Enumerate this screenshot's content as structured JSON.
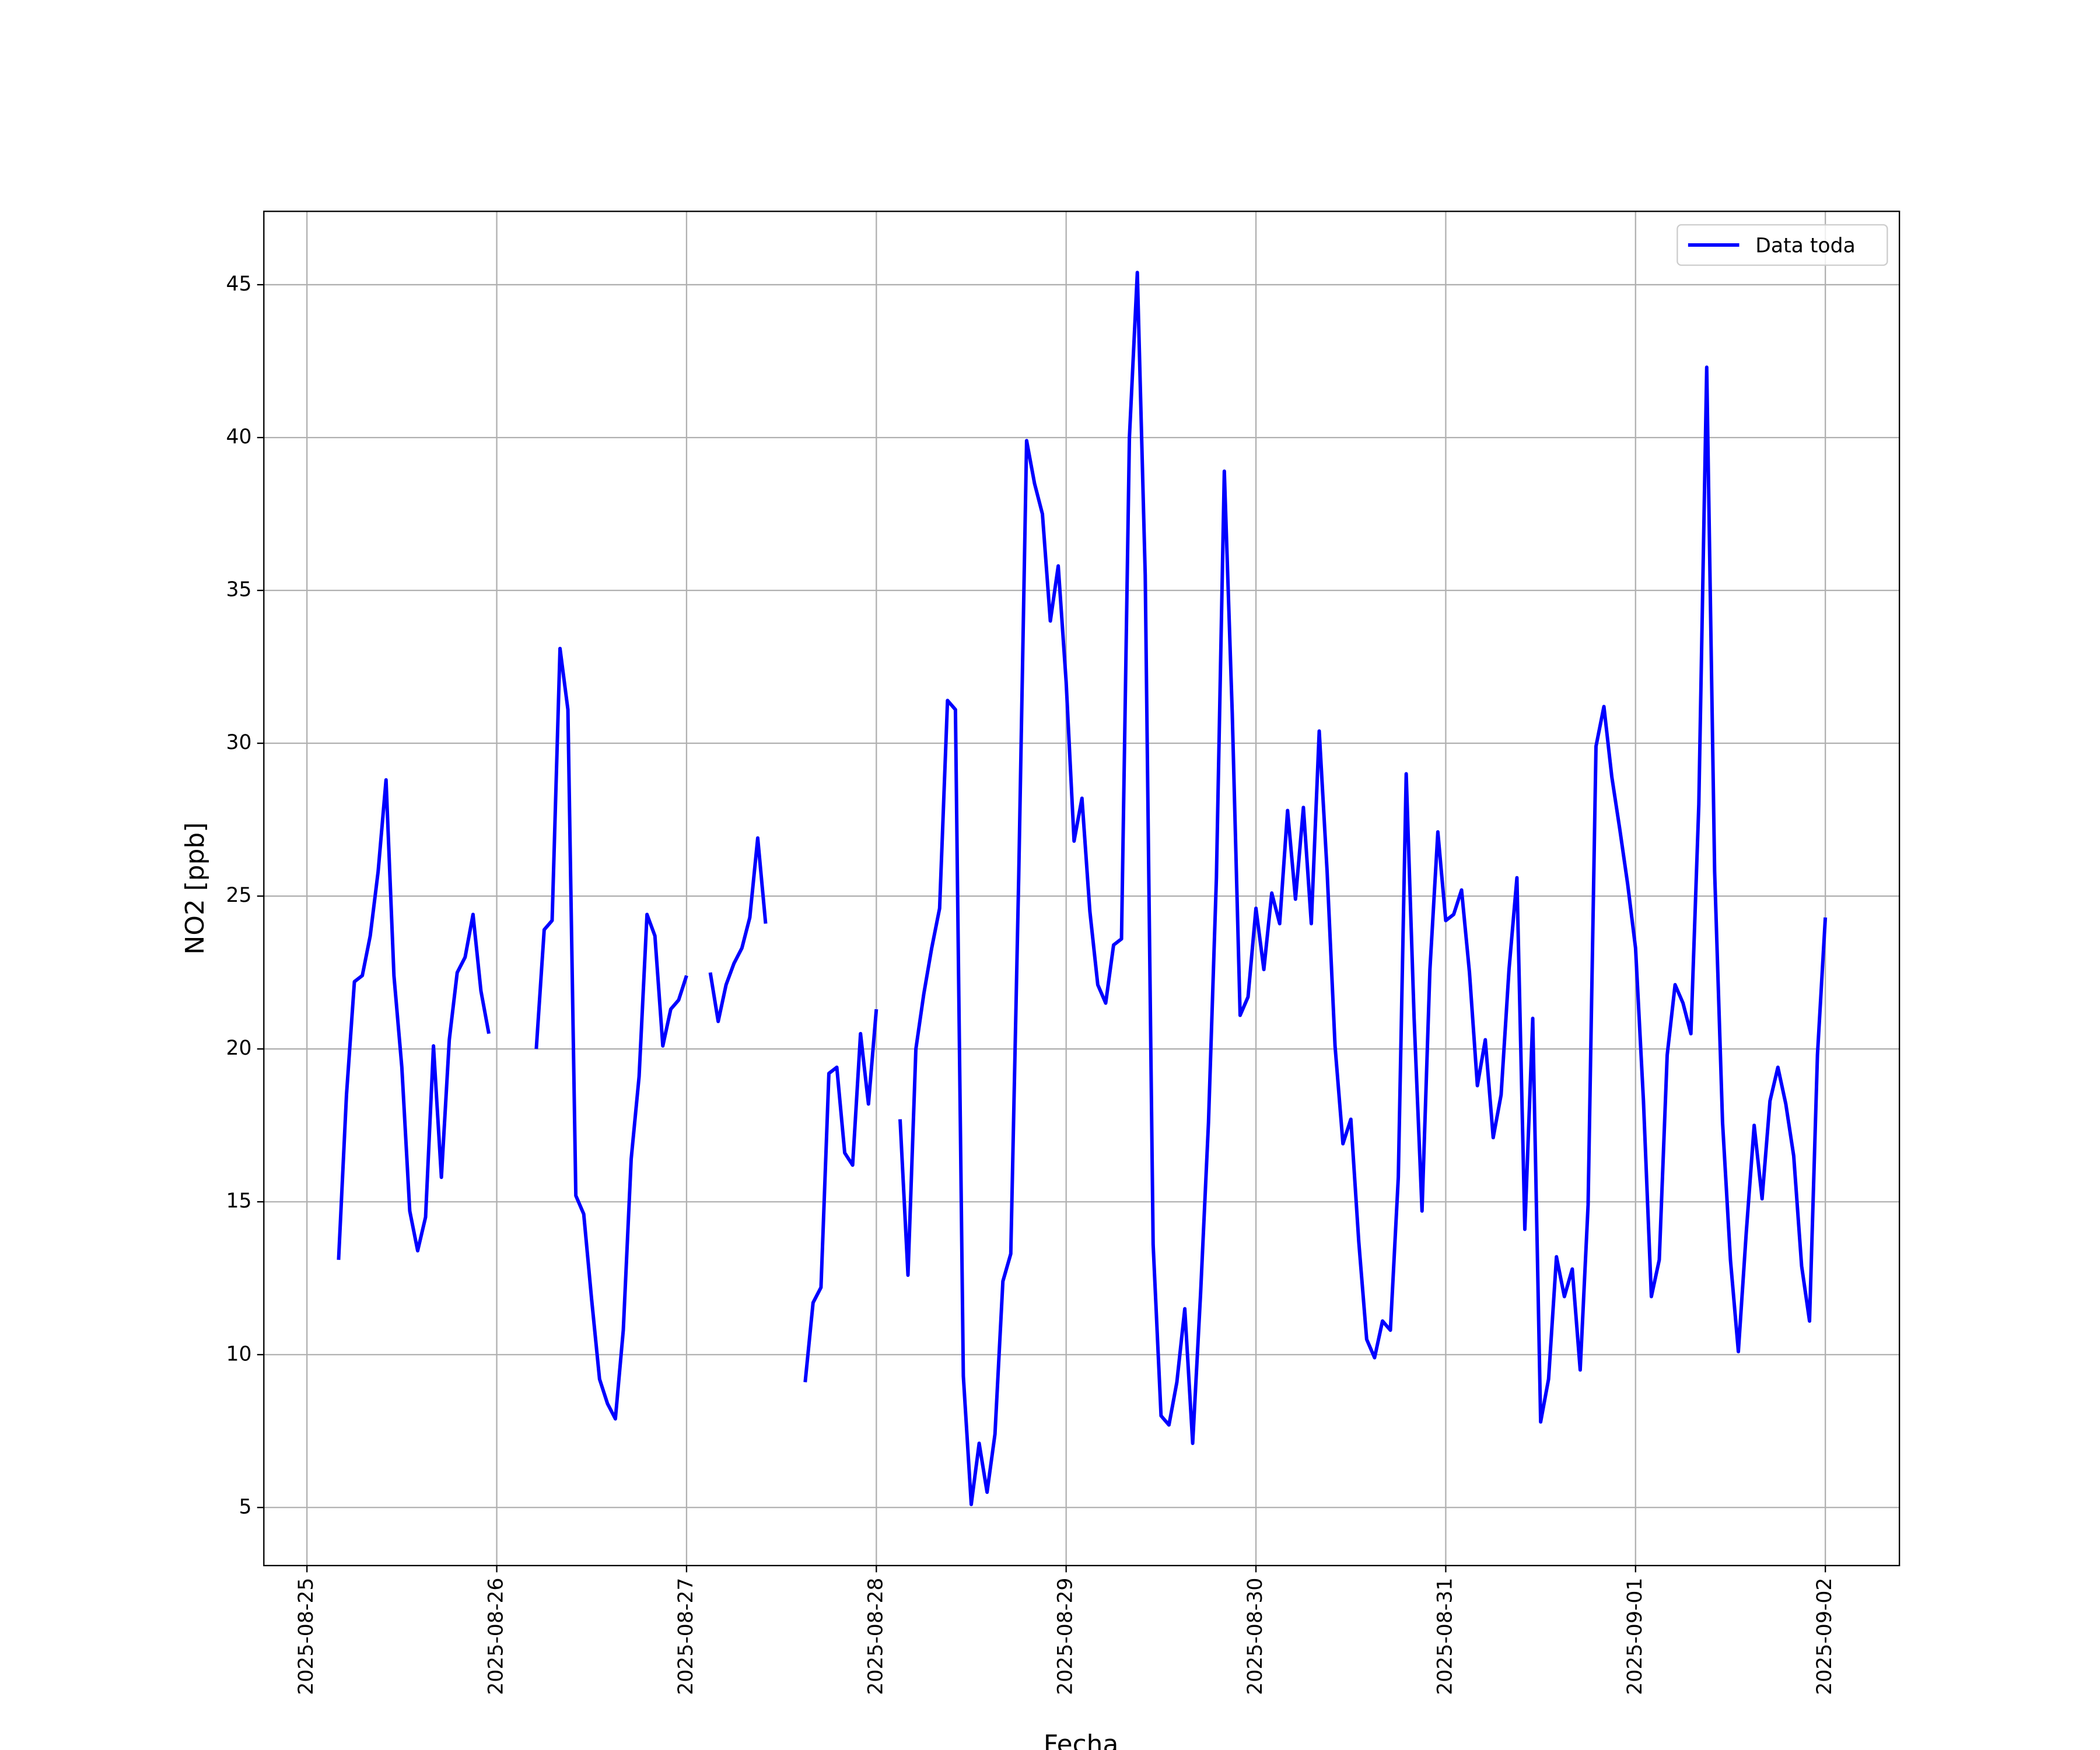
{
  "chart_data": {
    "type": "line",
    "xlabel": "Fecha",
    "ylabel": "NO2 [ppb]",
    "xlim": [
      "2025-08-24 18:33",
      "2025-09-02 09:22"
    ],
    "xticks": [
      "2025-08-25",
      "2025-08-26",
      "2025-08-27",
      "2025-08-28",
      "2025-08-29",
      "2025-08-30",
      "2025-08-31",
      "2025-09-01",
      "2025-09-02"
    ],
    "ylim": [
      3.1,
      47.4
    ],
    "yticks": [
      5,
      10,
      15,
      20,
      25,
      30,
      35,
      40,
      45
    ],
    "grid": true,
    "legend": "upper right",
    "x": [
      "2025-08-25 04:00",
      "2025-08-25 05:00",
      "2025-08-25 06:00",
      "2025-08-25 07:00",
      "2025-08-25 08:00",
      "2025-08-25 09:00",
      "2025-08-25 10:00",
      "2025-08-25 11:00",
      "2025-08-25 12:00",
      "2025-08-25 13:00",
      "2025-08-25 14:00",
      "2025-08-25 15:00",
      "2025-08-25 16:00",
      "2025-08-25 17:00",
      "2025-08-25 18:00",
      "2025-08-25 19:00",
      "2025-08-25 20:00",
      "2025-08-25 21:00",
      "2025-08-25 22:00",
      "2025-08-25 23:00",
      "2025-08-26 00:00",
      "2025-08-26 05:00",
      "2025-08-26 06:00",
      "2025-08-26 07:00",
      "2025-08-26 08:00",
      "2025-08-26 09:00",
      "2025-08-26 10:00",
      "2025-08-26 11:00",
      "2025-08-26 12:00",
      "2025-08-26 13:00",
      "2025-08-26 14:00",
      "2025-08-26 15:00",
      "2025-08-26 16:00",
      "2025-08-26 17:00",
      "2025-08-26 18:00",
      "2025-08-26 19:00",
      "2025-08-26 20:00",
      "2025-08-26 21:00",
      "2025-08-26 22:00",
      "2025-08-26 23:00",
      "2025-08-27 00:00",
      "2025-08-27 01:00",
      "2025-08-27 03:00",
      "2025-08-27 04:00",
      "2025-08-27 05:00",
      "2025-08-27 06:00",
      "2025-08-27 07:00",
      "2025-08-27 08:00",
      "2025-08-27 09:00",
      "2025-08-27 10:00",
      "2025-08-27 12:00",
      "2025-08-27 15:00",
      "2025-08-27 16:00",
      "2025-08-27 17:00",
      "2025-08-27 18:00",
      "2025-08-27 19:00",
      "2025-08-27 20:00",
      "2025-08-27 21:00",
      "2025-08-27 22:00",
      "2025-08-27 23:00",
      "2025-08-28 00:00",
      "2025-08-28 01:00",
      "2025-08-28 03:00",
      "2025-08-28 04:00",
      "2025-08-28 05:00",
      "2025-08-28 06:00",
      "2025-08-28 07:00",
      "2025-08-28 08:00",
      "2025-08-28 09:00",
      "2025-08-28 10:00",
      "2025-08-28 11:00",
      "2025-08-28 12:00",
      "2025-08-28 13:00",
      "2025-08-28 14:00",
      "2025-08-28 15:00",
      "2025-08-28 16:00",
      "2025-08-28 17:00",
      "2025-08-28 18:00",
      "2025-08-28 19:00",
      "2025-08-28 20:00",
      "2025-08-28 21:00",
      "2025-08-28 22:00",
      "2025-08-28 23:00",
      "2025-08-29 00:00",
      "2025-08-29 01:00",
      "2025-08-29 02:00",
      "2025-08-29 03:00",
      "2025-08-29 04:00",
      "2025-08-29 05:00",
      "2025-08-29 06:00",
      "2025-08-29 07:00",
      "2025-08-29 08:00",
      "2025-08-29 09:00",
      "2025-08-29 10:00",
      "2025-08-29 11:00",
      "2025-08-29 12:00",
      "2025-08-29 13:00",
      "2025-08-29 14:00",
      "2025-08-29 15:00",
      "2025-08-29 16:00",
      "2025-08-29 17:00",
      "2025-08-29 18:00",
      "2025-08-29 19:00",
      "2025-08-29 20:00",
      "2025-08-29 21:00",
      "2025-08-29 22:00",
      "2025-08-29 23:00",
      "2025-08-30 00:00",
      "2025-08-30 01:00",
      "2025-08-30 02:00",
      "2025-08-30 03:00",
      "2025-08-30 04:00",
      "2025-08-30 05:00",
      "2025-08-30 06:00",
      "2025-08-30 07:00",
      "2025-08-30 08:00",
      "2025-08-30 09:00",
      "2025-08-30 10:00",
      "2025-08-30 11:00",
      "2025-08-30 12:00",
      "2025-08-30 13:00",
      "2025-08-30 14:00",
      "2025-08-30 15:00",
      "2025-08-30 16:00",
      "2025-08-30 17:00",
      "2025-08-30 18:00",
      "2025-08-30 19:00",
      "2025-08-30 20:00",
      "2025-08-30 21:00",
      "2025-08-30 22:00",
      "2025-08-30 23:00",
      "2025-08-31 00:00",
      "2025-08-31 01:00",
      "2025-08-31 02:00",
      "2025-08-31 03:00",
      "2025-08-31 04:00",
      "2025-08-31 05:00",
      "2025-08-31 06:00",
      "2025-08-31 07:00",
      "2025-08-31 08:00",
      "2025-08-31 09:00",
      "2025-08-31 10:00",
      "2025-08-31 11:00",
      "2025-08-31 12:00",
      "2025-08-31 13:00",
      "2025-08-31 14:00",
      "2025-08-31 15:00",
      "2025-08-31 16:00",
      "2025-08-31 17:00",
      "2025-08-31 18:00",
      "2025-08-31 19:00",
      "2025-08-31 20:00",
      "2025-08-31 21:00",
      "2025-08-31 22:00",
      "2025-08-31 23:00",
      "2025-09-01 00:00",
      "2025-09-01 01:00",
      "2025-09-01 02:00",
      "2025-09-01 03:00",
      "2025-09-01 04:00",
      "2025-09-01 05:00",
      "2025-09-01 06:00",
      "2025-09-01 07:00",
      "2025-09-01 08:00",
      "2025-09-01 09:00",
      "2025-09-01 10:00",
      "2025-09-01 11:00",
      "2025-09-01 12:00",
      "2025-09-01 13:00",
      "2025-09-01 14:00",
      "2025-09-01 15:00",
      "2025-09-01 16:00",
      "2025-09-01 17:00",
      "2025-09-01 18:00",
      "2025-09-01 19:00",
      "2025-09-01 20:00",
      "2025-09-01 21:00",
      "2025-09-01 22:00",
      "2025-09-01 23:00",
      "2025-09-02 00:00"
    ],
    "series": [
      {
        "name": "Data toda",
        "color": "#0000ff",
        "values": [
          13.1,
          18.5,
          22.2,
          22.4,
          23.7,
          25.8,
          28.8,
          22.4,
          19.4,
          14.7,
          13.4,
          14.5,
          20.1,
          15.8,
          20.3,
          22.5,
          23.0,
          24.4,
          21.9,
          20.5,
          null,
          20.0,
          23.9,
          24.2,
          33.1,
          31.1,
          15.2,
          14.6,
          11.8,
          9.2,
          8.4,
          7.9,
          10.8,
          16.4,
          19.1,
          24.4,
          23.7,
          20.1,
          21.3,
          21.6,
          22.4,
          null,
          22.5,
          20.9,
          22.1,
          22.8,
          23.3,
          24.3,
          26.9,
          24.1,
          null,
          9.1,
          11.7,
          12.2,
          19.2,
          19.4,
          16.6,
          16.2,
          20.5,
          18.2,
          21.3,
          null,
          17.7,
          12.6,
          20.0,
          21.8,
          23.3,
          24.6,
          31.4,
          31.1,
          9.3,
          5.1,
          7.1,
          5.5,
          7.4,
          12.4,
          13.3,
          25.6,
          39.9,
          38.5,
          37.5,
          34.0,
          35.8,
          32.0,
          26.8,
          28.2,
          24.5,
          22.1,
          21.5,
          23.4,
          23.6,
          40.0,
          45.4,
          35.5,
          13.6,
          8.0,
          7.7,
          9.1,
          11.5,
          7.1,
          12.0,
          17.6,
          25.6,
          38.9,
          31.0,
          21.1,
          21.7,
          24.6,
          22.6,
          25.1,
          24.1,
          27.8,
          24.9,
          27.9,
          24.1,
          30.4,
          25.8,
          20.1,
          16.9,
          17.7,
          13.7,
          10.5,
          9.9,
          11.1,
          10.8,
          15.8,
          29.0,
          21.0,
          14.7,
          22.6,
          27.1,
          24.2,
          24.4,
          25.2,
          22.5,
          18.8,
          20.3,
          17.1,
          18.5,
          22.6,
          25.6,
          14.1,
          21.0,
          7.8,
          9.2,
          13.2,
          11.9,
          12.8,
          9.5,
          14.9,
          29.9,
          31.2,
          28.9,
          27.2,
          25.4,
          23.3,
          18.3,
          11.9,
          13.1,
          19.8,
          22.1,
          21.5,
          20.5,
          28.0,
          42.3,
          25.8,
          17.6,
          13.1,
          10.1,
          14.0,
          17.5,
          15.1,
          18.3,
          19.4,
          18.2,
          16.5,
          12.9,
          11.1,
          19.8,
          24.3
        ]
      }
    ]
  }
}
